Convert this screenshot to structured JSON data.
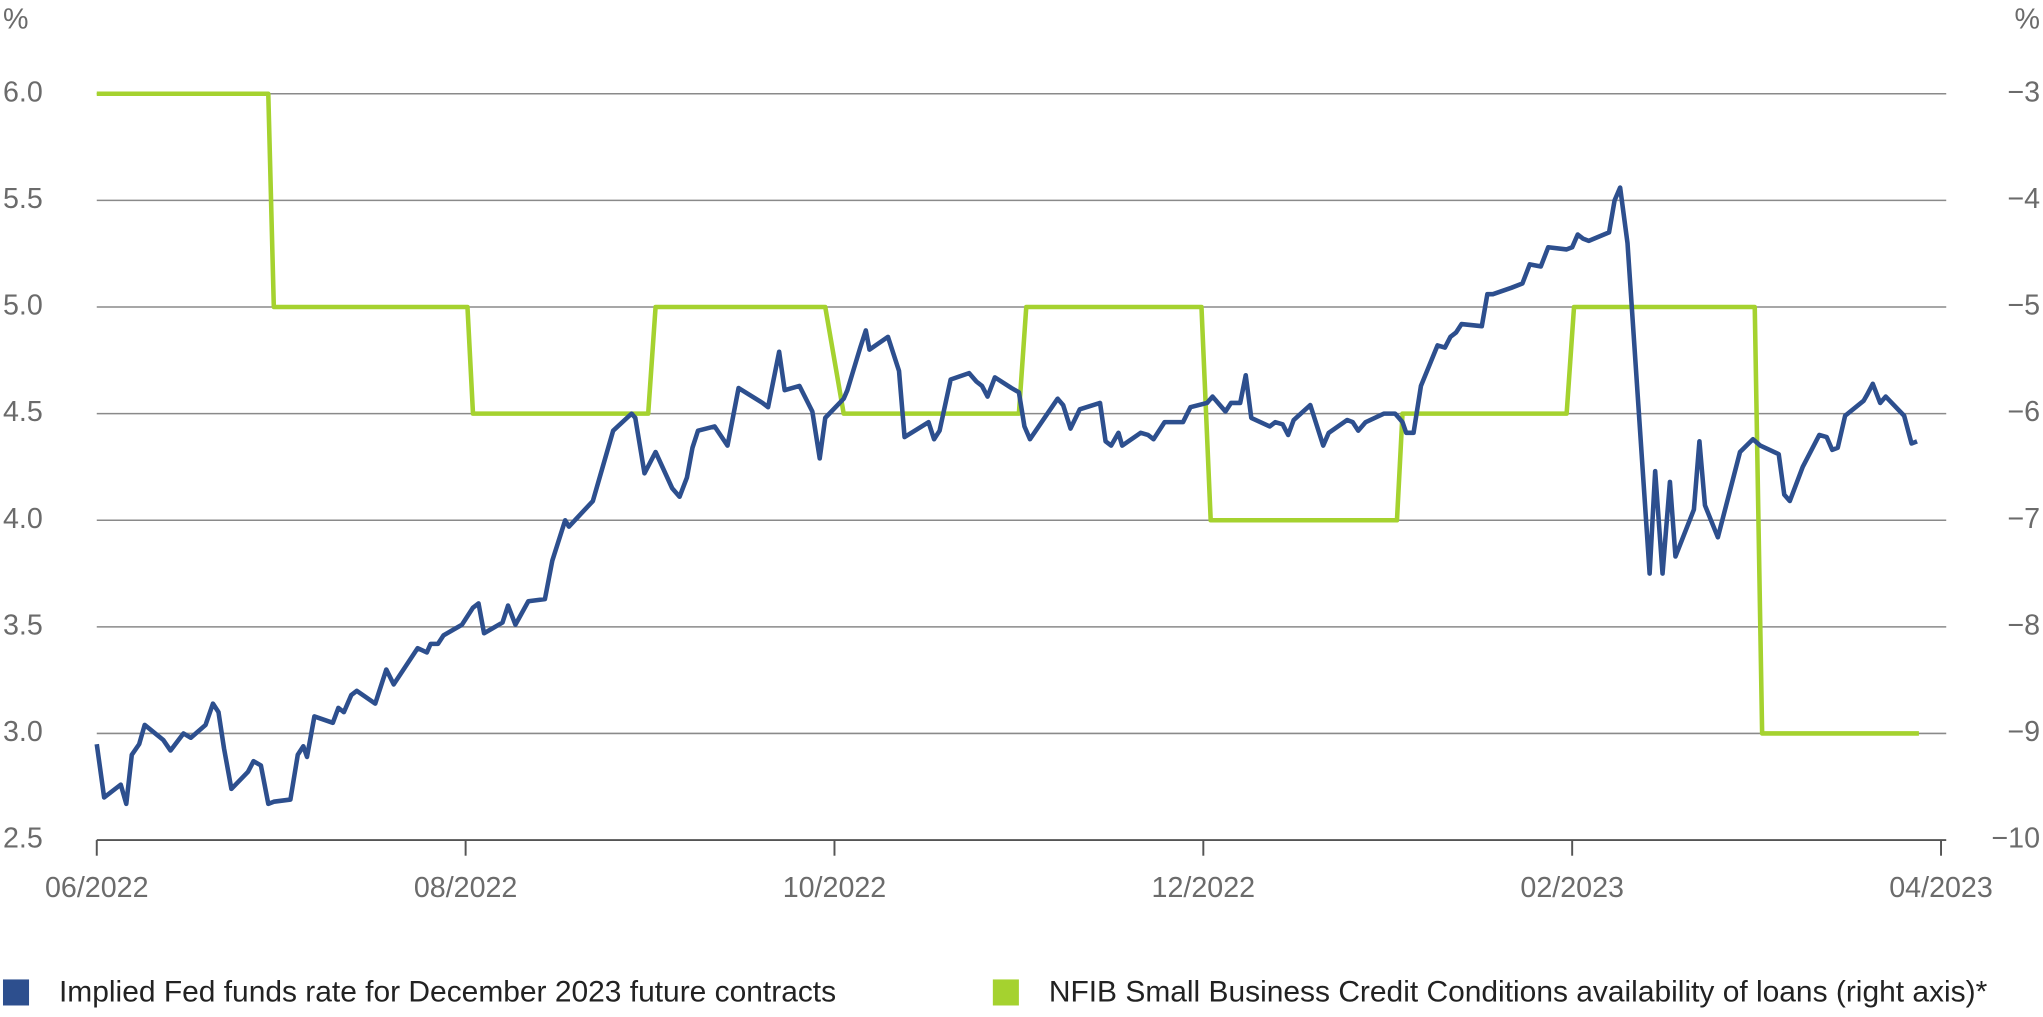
{
  "chart_data": {
    "type": "line",
    "y_unit": "%",
    "y2_unit": "%",
    "xlim": [
      0,
      10
    ],
    "xticks": [
      {
        "value": 0,
        "label": "06/2022"
      },
      {
        "value": 2,
        "label": "08/2022"
      },
      {
        "value": 4,
        "label": "10/2022"
      },
      {
        "value": 6,
        "label": "12/2022"
      },
      {
        "value": 8,
        "label": "02/2023"
      },
      {
        "value": 10,
        "label": "04/2023"
      }
    ],
    "ylim": [
      2.5,
      6
    ],
    "yticks": [
      {
        "value": 2.5,
        "label": "2.5"
      },
      {
        "value": 3,
        "label": "3.0"
      },
      {
        "value": 3.5,
        "label": "3.5"
      },
      {
        "value": 4,
        "label": "4.0"
      },
      {
        "value": 4.5,
        "label": "4.5"
      },
      {
        "value": 5,
        "label": "5.0"
      },
      {
        "value": 5.5,
        "label": "5.5"
      },
      {
        "value": 6,
        "label": "6.0"
      }
    ],
    "y2lim": [
      -10,
      -3
    ],
    "y2ticks": [
      {
        "value": -10,
        "label": "−10"
      },
      {
        "value": -9,
        "label": "−9"
      },
      {
        "value": -8,
        "label": "−8"
      },
      {
        "value": -7,
        "label": "−7"
      },
      {
        "value": -6,
        "label": "−6"
      },
      {
        "value": -5,
        "label": "−5"
      },
      {
        "value": -4,
        "label": "−4"
      },
      {
        "value": -3,
        "label": "−3"
      }
    ],
    "grid": true,
    "legend": "bottom",
    "series": [
      {
        "name": "Implied Fed funds rate for December 2023 future contracts",
        "color": "#2d4f8e",
        "axis": "y",
        "x": [
          0.0,
          0.04,
          0.13,
          0.16,
          0.19,
          0.23,
          0.26,
          0.36,
          0.4,
          0.47,
          0.51,
          0.59,
          0.63,
          0.66,
          0.69,
          0.73,
          0.82,
          0.85,
          0.89,
          0.93,
          0.96,
          1.05,
          1.09,
          1.12,
          1.14,
          1.18,
          1.28,
          1.31,
          1.34,
          1.38,
          1.41,
          1.51,
          1.57,
          1.61,
          1.74,
          1.79,
          1.81,
          1.85,
          1.88,
          1.98,
          2.04,
          2.07,
          2.1,
          2.2,
          2.23,
          2.27,
          2.34,
          2.43,
          2.47,
          2.54,
          2.56,
          2.69,
          2.74,
          2.8,
          2.9,
          2.92,
          2.97,
          3.03,
          3.12,
          3.16,
          3.2,
          3.23,
          3.26,
          3.35,
          3.42,
          3.48,
          3.61,
          3.64,
          3.7,
          3.73,
          3.81,
          3.88,
          3.92,
          3.95,
          4.05,
          4.07,
          4.14,
          4.17,
          4.19,
          4.29,
          4.35,
          4.38,
          4.51,
          4.54,
          4.57,
          4.63,
          4.73,
          4.77,
          4.8,
          4.83,
          4.87,
          4.96,
          5.0,
          5.03,
          5.06,
          5.21,
          5.24,
          5.28,
          5.33,
          5.44,
          5.47,
          5.5,
          5.54,
          5.56,
          5.66,
          5.7,
          5.73,
          5.79,
          5.89,
          5.93,
          6.02,
          6.05,
          6.12,
          6.15,
          6.2,
          6.23,
          6.26,
          6.36,
          6.39,
          6.43,
          6.46,
          6.49,
          6.58,
          6.65,
          6.68,
          6.78,
          6.81,
          6.84,
          6.88,
          6.98,
          7.04,
          7.08,
          7.1,
          7.14,
          7.18,
          7.27,
          7.31,
          7.34,
          7.37,
          7.4,
          7.51,
          7.54,
          7.57,
          7.67,
          7.73,
          7.77,
          7.83,
          7.87,
          7.97,
          8.0,
          8.03,
          8.06,
          8.09,
          8.2,
          8.23,
          8.26,
          8.3,
          8.42,
          8.45,
          8.49,
          8.53,
          8.56,
          8.66,
          8.69,
          8.72,
          8.79,
          8.91,
          8.98,
          9.02,
          9.12,
          9.15,
          9.18,
          9.25,
          9.34,
          9.38,
          9.41,
          9.44,
          9.48,
          9.58,
          9.6,
          9.63,
          9.67,
          9.7,
          9.8,
          9.84,
          9.87
        ],
        "values": [
          2.95,
          2.7,
          2.76,
          2.67,
          2.9,
          2.95,
          3.04,
          2.97,
          2.92,
          3.0,
          2.98,
          3.04,
          3.14,
          3.1,
          2.93,
          2.74,
          2.82,
          2.87,
          2.85,
          2.67,
          2.68,
          2.69,
          2.9,
          2.94,
          2.89,
          3.08,
          3.05,
          3.12,
          3.1,
          3.18,
          3.2,
          3.14,
          3.3,
          3.23,
          3.4,
          3.38,
          3.42,
          3.42,
          3.46,
          3.51,
          3.59,
          3.61,
          3.47,
          3.52,
          3.6,
          3.51,
          3.62,
          3.63,
          3.81,
          4.0,
          3.97,
          4.09,
          4.24,
          4.42,
          4.5,
          4.48,
          4.22,
          4.32,
          4.15,
          4.11,
          4.2,
          4.34,
          4.42,
          4.44,
          4.35,
          4.62,
          4.55,
          4.53,
          4.79,
          4.61,
          4.63,
          4.51,
          4.29,
          4.48,
          4.57,
          4.61,
          4.81,
          4.89,
          4.8,
          4.86,
          4.7,
          4.39,
          4.46,
          4.38,
          4.42,
          4.66,
          4.69,
          4.65,
          4.63,
          4.58,
          4.67,
          4.62,
          4.6,
          4.44,
          4.38,
          4.57,
          4.54,
          4.43,
          4.52,
          4.55,
          4.37,
          4.35,
          4.41,
          4.35,
          4.41,
          4.4,
          4.38,
          4.46,
          4.46,
          4.53,
          4.55,
          4.58,
          4.51,
          4.55,
          4.55,
          4.68,
          4.48,
          4.44,
          4.46,
          4.45,
          4.4,
          4.47,
          4.54,
          4.35,
          4.41,
          4.47,
          4.46,
          4.42,
          4.46,
          4.5,
          4.5,
          4.46,
          4.41,
          4.41,
          4.63,
          4.82,
          4.81,
          4.86,
          4.88,
          4.92,
          4.91,
          5.06,
          5.06,
          5.09,
          5.11,
          5.2,
          5.19,
          5.28,
          5.27,
          5.28,
          5.34,
          5.32,
          5.31,
          5.35,
          5.5,
          5.56,
          5.3,
          3.75,
          4.23,
          3.75,
          4.18,
          3.83,
          4.05,
          4.37,
          4.07,
          3.92,
          4.32,
          4.38,
          4.35,
          4.31,
          4.12,
          4.09,
          4.25,
          4.4,
          4.39,
          4.33,
          4.34,
          4.49,
          4.56,
          4.59,
          4.64,
          4.55,
          4.58,
          4.49,
          4.36,
          4.37
        ]
      },
      {
        "name": "NFIB Small Business Credit Conditions availability of loans (right axis)*",
        "color": "#a5d22f",
        "axis": "y2",
        "x": [
          0.0,
          0.93,
          0.96,
          2.01,
          2.04,
          2.99,
          3.03,
          3.95,
          4.05,
          5.0,
          5.04,
          5.99,
          6.04,
          7.05,
          7.08,
          7.97,
          8.01,
          8.99,
          9.03,
          9.88
        ],
        "values": [
          -3,
          -3,
          -5,
          -5,
          -6,
          -6,
          -5,
          -5,
          -6,
          -6,
          -5,
          -5,
          -7,
          -7,
          -6,
          -6,
          -5,
          -5,
          -9,
          -9
        ]
      }
    ]
  }
}
